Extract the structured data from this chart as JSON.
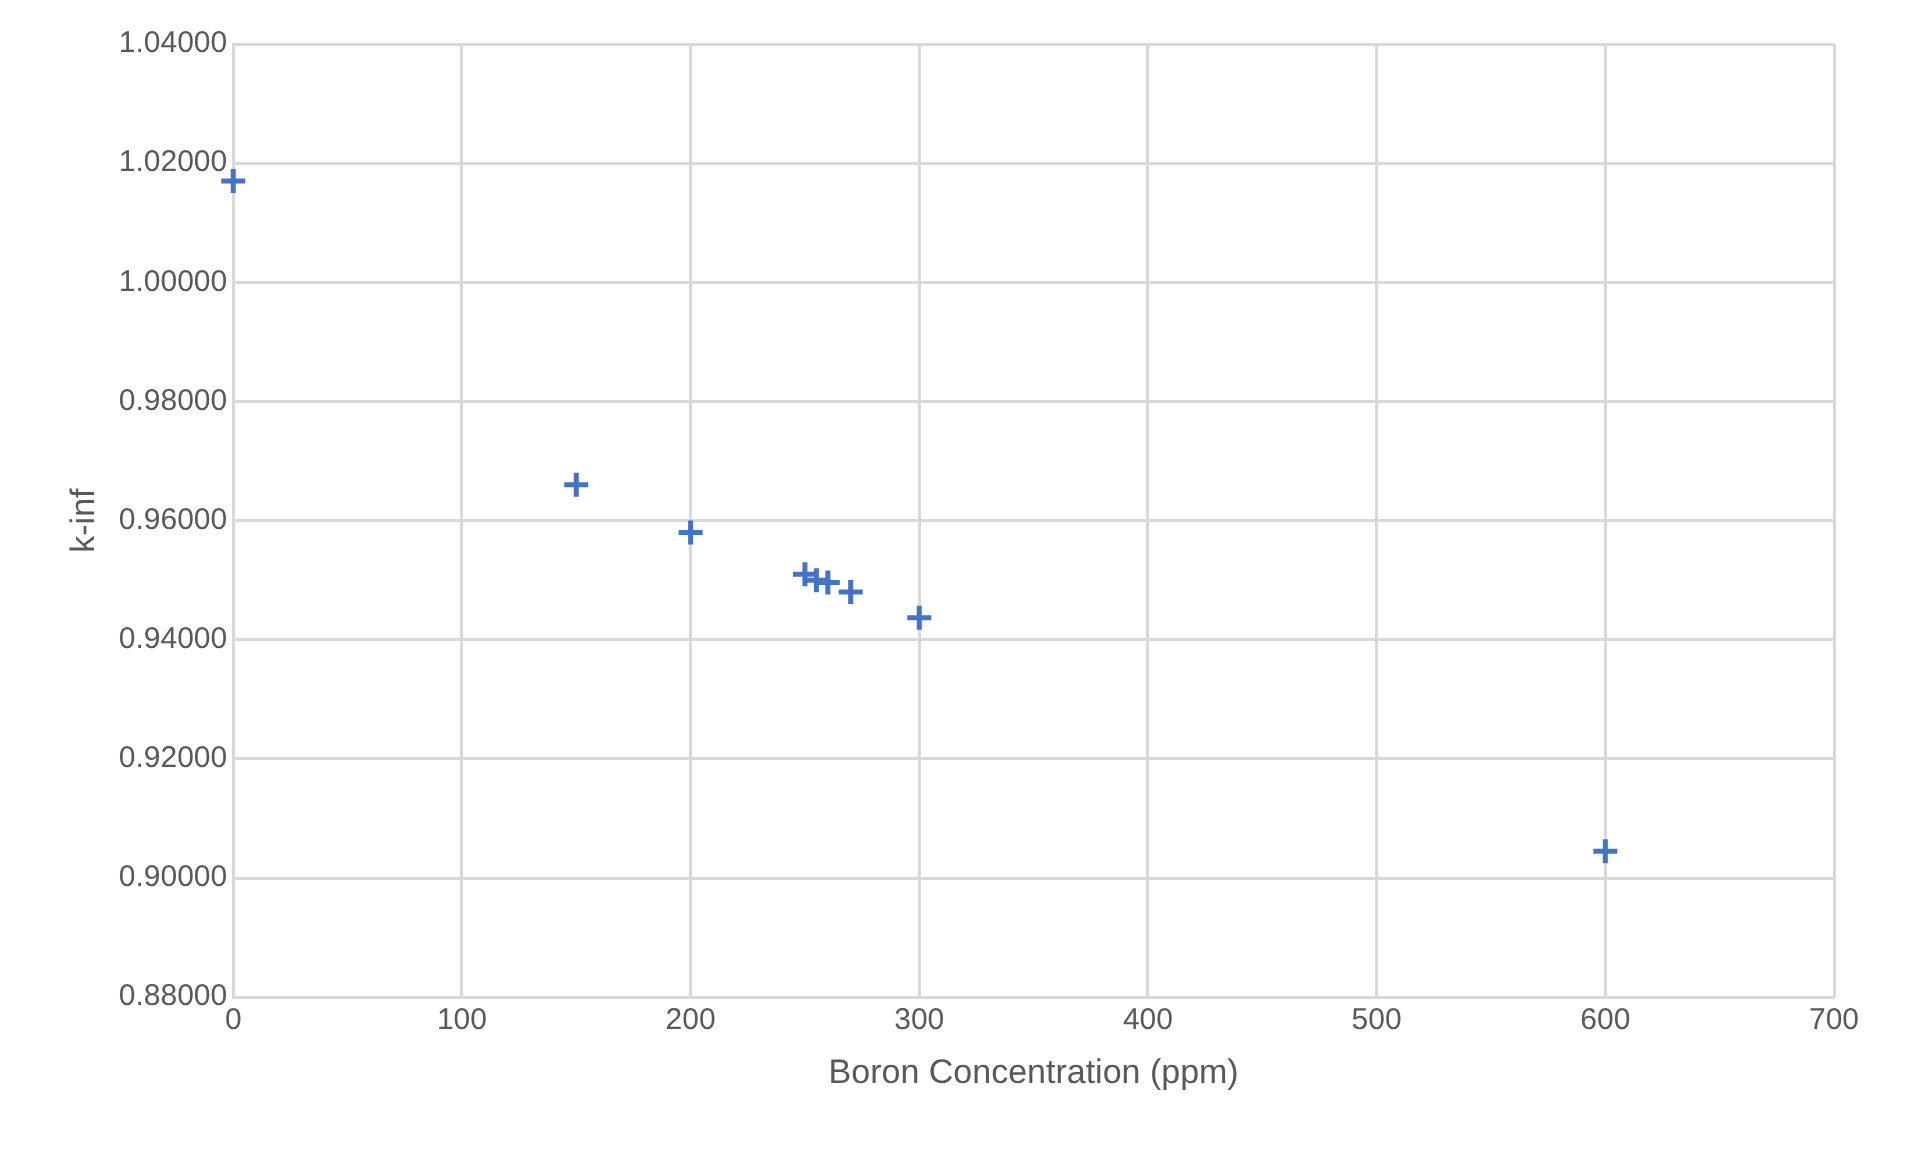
{
  "chart_data": {
    "type": "scatter",
    "xlabel": "Boron Concentration (ppm)",
    "ylabel": "k-inf",
    "x": [
      0,
      150,
      200,
      250,
      255,
      260,
      270,
      300,
      600
    ],
    "series": [
      {
        "color": "#4472c4",
        "values": [
          1.017,
          0.966,
          0.958,
          0.951,
          0.95,
          0.9496,
          0.948,
          0.9437,
          0.9045
        ]
      }
    ],
    "xlim": [
      0,
      700
    ],
    "xticks": [
      0,
      100,
      200,
      300,
      400,
      500,
      600,
      700
    ],
    "ylim": [
      0.88,
      1.04
    ],
    "yticks": [
      {
        "value": 0.88,
        "label": "0.88000"
      },
      {
        "value": 0.9,
        "label": "0.90000"
      },
      {
        "value": 0.92,
        "label": "0.92000"
      },
      {
        "value": 0.94,
        "label": "0.94000"
      },
      {
        "value": 0.96,
        "label": "0.96000"
      },
      {
        "value": 0.98,
        "label": "0.98000"
      },
      {
        "value": 1.0,
        "label": "1.00000"
      },
      {
        "value": 1.02,
        "label": "1.02000"
      },
      {
        "value": 1.04,
        "label": "1.04000"
      }
    ],
    "grid": true,
    "legend": false,
    "marker": "cross"
  }
}
